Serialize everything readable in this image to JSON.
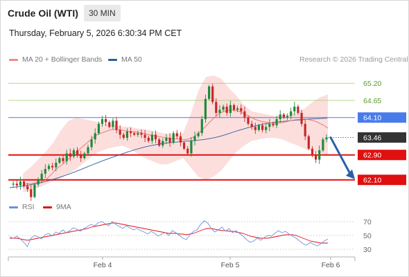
{
  "header": {
    "instrument": "Crude Oil (WTI)",
    "timeframe": "30 MIN",
    "datetime": "Thursday, February 5, 2026 6:30:34 PM CET"
  },
  "legend_main": [
    {
      "label": "MA 20 + Bollinger Bands",
      "color": "#f08a80"
    },
    {
      "label": "MA 50",
      "color": "#2c5aa0"
    }
  ],
  "credit": "Research © 2026 Trading Central",
  "legend_rsi": [
    {
      "label": "RSI",
      "color": "#6f8fe0"
    },
    {
      "label": "9MA",
      "color": "#e01010"
    }
  ],
  "colors": {
    "up": "#1f8a3a",
    "down": "#c62828",
    "resistance": "#9ccc65",
    "pivot": "#4a7bea",
    "support": "#e01010",
    "last": "#333333",
    "arrow": "#2a5fa8"
  },
  "chart_data": [
    {
      "type": "candlestick",
      "title": "",
      "xlabel": "",
      "ylabel": "",
      "x_ticks": [
        "Feb 4",
        "Feb 5",
        "Feb 6"
      ],
      "ylim": [
        61.65,
        65.65
      ],
      "levels": [
        {
          "value": 65.2,
          "label": "65.20",
          "kind": "resistance"
        },
        {
          "value": 64.65,
          "label": "64.65",
          "kind": "resistance"
        },
        {
          "value": 64.1,
          "label": "64.10",
          "kind": "pivot"
        },
        {
          "value": 63.46,
          "label": "63.46",
          "kind": "last"
        },
        {
          "value": 62.9,
          "label": "62.90",
          "kind": "support"
        },
        {
          "value": 62.1,
          "label": "62.10",
          "kind": "support"
        }
      ],
      "close_path": [
        61.95,
        61.98,
        61.92,
        62.05,
        61.9,
        61.8,
        61.55,
        61.95,
        62.1,
        62.3,
        62.45,
        62.55,
        62.5,
        62.65,
        62.8,
        62.7,
        62.95,
        62.85,
        63.05,
        62.9,
        62.8,
        62.95,
        63.15,
        63.4,
        63.6,
        63.9,
        64.05,
        63.95,
        63.8,
        64.0,
        63.7,
        63.55,
        63.45,
        63.65,
        63.6,
        63.55,
        63.6,
        63.55,
        63.45,
        63.35,
        63.55,
        63.4,
        63.2,
        63.35,
        63.45,
        63.3,
        63.6,
        63.5,
        63.3,
        63.1,
        62.95,
        63.35,
        63.5,
        63.6,
        64.05,
        64.7,
        65.1,
        64.6,
        64.25,
        64.35,
        64.45,
        64.25,
        64.5,
        64.35,
        64.4,
        64.3,
        64.1,
        63.9,
        63.8,
        63.7,
        63.85,
        63.7,
        63.8,
        63.9,
        63.85,
        64.05,
        64.2,
        64.1,
        64.15,
        64.3,
        64.45,
        64.25,
        63.9,
        63.5,
        63.1,
        62.9,
        62.75,
        63.05,
        63.4,
        63.46
      ],
      "ma20_path": [
        61.95,
        61.97,
        61.97,
        62.0,
        62.02,
        62.05,
        62.08,
        62.18,
        62.3,
        62.42,
        62.52,
        62.6,
        62.72,
        62.82,
        62.92,
        63.02,
        63.12,
        63.22,
        63.32,
        63.42,
        63.52,
        63.58,
        63.62,
        63.66,
        63.7,
        63.72,
        63.72,
        63.7,
        63.68,
        63.66,
        63.65,
        63.64,
        63.62,
        63.6,
        63.57,
        63.54,
        63.52,
        63.5,
        63.48,
        63.46,
        63.44,
        63.43,
        63.42,
        63.41,
        63.4,
        63.4,
        63.42,
        63.48,
        63.56,
        63.66,
        63.78,
        63.9,
        64.02,
        64.12,
        64.22,
        64.28,
        64.32,
        64.34,
        64.34,
        64.32,
        64.28,
        64.22,
        64.16,
        64.1,
        64.04,
        64.0,
        63.97,
        63.95,
        63.93,
        63.92,
        63.92,
        63.93,
        63.95,
        63.98,
        64.01,
        64.03,
        64.04,
        64.05,
        64.05,
        64.03,
        64.0,
        63.96,
        63.9,
        63.84,
        63.76
      ],
      "ma20_x_start": 33,
      "ma20_x_end": 473,
      "ma50_path": [
        61.85,
        61.87,
        61.9,
        61.93,
        61.97,
        62.01,
        62.06,
        62.12,
        62.18,
        62.25,
        62.32,
        62.4,
        62.48,
        62.56,
        62.64,
        62.72,
        62.79,
        62.86,
        62.93,
        63.0,
        63.06,
        63.12,
        63.17,
        63.21,
        63.25,
        63.28,
        63.3,
        63.32,
        63.34,
        63.35,
        63.37,
        63.39,
        63.42,
        63.46,
        63.51,
        63.57,
        63.64,
        63.7,
        63.76,
        63.81,
        63.86,
        63.9,
        63.93,
        63.96,
        63.98,
        64.0,
        64.02,
        64.03,
        64.05,
        64.06,
        64.07,
        64.08
      ],
      "ma50_x_start": 14,
      "ma50_x_end": 472,
      "bb_upper": [
        62.3,
        62.5,
        62.75,
        63.0,
        63.3,
        63.7,
        64.0,
        64.1,
        64.05,
        64.0,
        63.95,
        63.9,
        63.85,
        63.82,
        63.8,
        63.75,
        63.72,
        63.68,
        63.62,
        63.58,
        63.55,
        63.6,
        64.2,
        64.95,
        65.4,
        65.45,
        65.35,
        65.05,
        64.8,
        64.5,
        64.3,
        64.25,
        64.2,
        64.15,
        64.18,
        64.22,
        64.28,
        64.4,
        64.6,
        64.75,
        64.85
      ],
      "bb_lower": [
        61.7,
        61.75,
        61.85,
        61.95,
        62.05,
        62.15,
        62.3,
        62.45,
        62.65,
        62.85,
        63.0,
        63.1,
        63.15,
        63.2,
        63.1,
        62.95,
        62.8,
        62.7,
        62.6,
        62.6,
        62.7,
        62.8,
        62.5,
        62.2,
        62.1,
        62.2,
        62.4,
        62.7,
        63.0,
        63.2,
        63.35,
        63.4,
        63.45,
        63.45,
        63.4,
        63.3,
        63.2,
        63.1,
        63.0,
        62.95,
        62.9
      ]
    },
    {
      "type": "line",
      "title": "",
      "ylim": [
        23,
        77
      ],
      "y_ticks": [
        70,
        50,
        30
      ],
      "rsi": [
        48,
        46,
        49,
        45,
        40,
        34,
        46,
        50,
        48,
        45,
        51,
        53,
        49,
        55,
        53,
        58,
        54,
        57,
        61,
        59,
        56,
        60,
        63,
        66,
        64,
        68,
        70,
        67,
        64,
        70,
        66,
        63,
        60,
        64,
        61,
        58,
        60,
        57,
        55,
        52,
        56,
        53,
        49,
        52,
        54,
        50,
        57,
        54,
        50,
        46,
        44,
        51,
        56,
        58,
        66,
        71,
        68,
        60,
        55,
        58,
        62,
        56,
        60,
        54,
        57,
        53,
        49,
        44,
        40,
        42,
        46,
        43,
        47,
        50,
        49,
        53,
        57,
        54,
        56,
        52,
        49,
        46,
        42,
        38,
        36,
        40,
        37,
        35,
        38,
        42,
        45
      ],
      "ma9": [
        46,
        46,
        46,
        45,
        44,
        43,
        44,
        45,
        46,
        47,
        48,
        49,
        50,
        51,
        52,
        53,
        54,
        55,
        56,
        57,
        58,
        59,
        60,
        62,
        63,
        64,
        65,
        66,
        67,
        68,
        68,
        67,
        66,
        65,
        64,
        63,
        62,
        61,
        60,
        59,
        58,
        57,
        56,
        55,
        54,
        53,
        53,
        53,
        52,
        52,
        51,
        52,
        53,
        55,
        57,
        59,
        60,
        60,
        59,
        58,
        57,
        57,
        56,
        56,
        55,
        54,
        53,
        51,
        49,
        48,
        47,
        46,
        46,
        46,
        47,
        48,
        49,
        50,
        51,
        51,
        51,
        50,
        48,
        46,
        44,
        42,
        41,
        40,
        39,
        39,
        39
      ]
    }
  ]
}
